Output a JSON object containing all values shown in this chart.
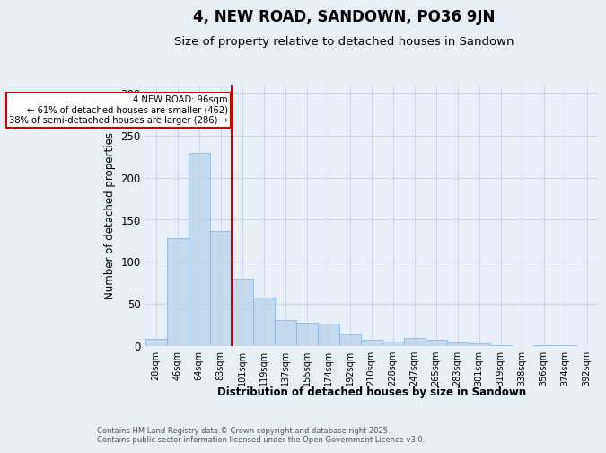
{
  "title": "4, NEW ROAD, SANDOWN, PO36 9JN",
  "subtitle": "Size of property relative to detached houses in Sandown",
  "xlabel": "Distribution of detached houses by size in Sandown",
  "ylabel": "Number of detached properties",
  "categories": [
    "28sqm",
    "46sqm",
    "64sqm",
    "83sqm",
    "101sqm",
    "119sqm",
    "137sqm",
    "155sqm",
    "174sqm",
    "192sqm",
    "210sqm",
    "228sqm",
    "247sqm",
    "265sqm",
    "283sqm",
    "301sqm",
    "319sqm",
    "338sqm",
    "356sqm",
    "374sqm",
    "392sqm"
  ],
  "values": [
    8,
    128,
    229,
    136,
    80,
    57,
    31,
    27,
    26,
    14,
    7,
    5,
    9,
    7,
    4,
    3,
    1,
    0,
    1,
    1,
    0
  ],
  "bar_color": "#c5d9ed",
  "bar_edge_color": "#8fb8d8",
  "vline_index": 3.5,
  "marker_label": "4 NEW ROAD: 96sqm",
  "annotation_line1": "← 61% of detached houses are smaller (462)",
  "annotation_line2": "38% of semi-detached houses are larger (286) →",
  "vline_color": "#cc0000",
  "annotation_box_edge": "#cc0000",
  "ylim": [
    0,
    310
  ],
  "yticks": [
    0,
    50,
    100,
    150,
    200,
    250,
    300
  ],
  "bg_color": "#e8eef6",
  "footer_line1": "Contains HM Land Registry data © Crown copyright and database right 2025.",
  "footer_line2": "Contains public sector information licensed under the Open Government Licence v3.0.",
  "title_fontsize": 12,
  "subtitle_fontsize": 9.5
}
